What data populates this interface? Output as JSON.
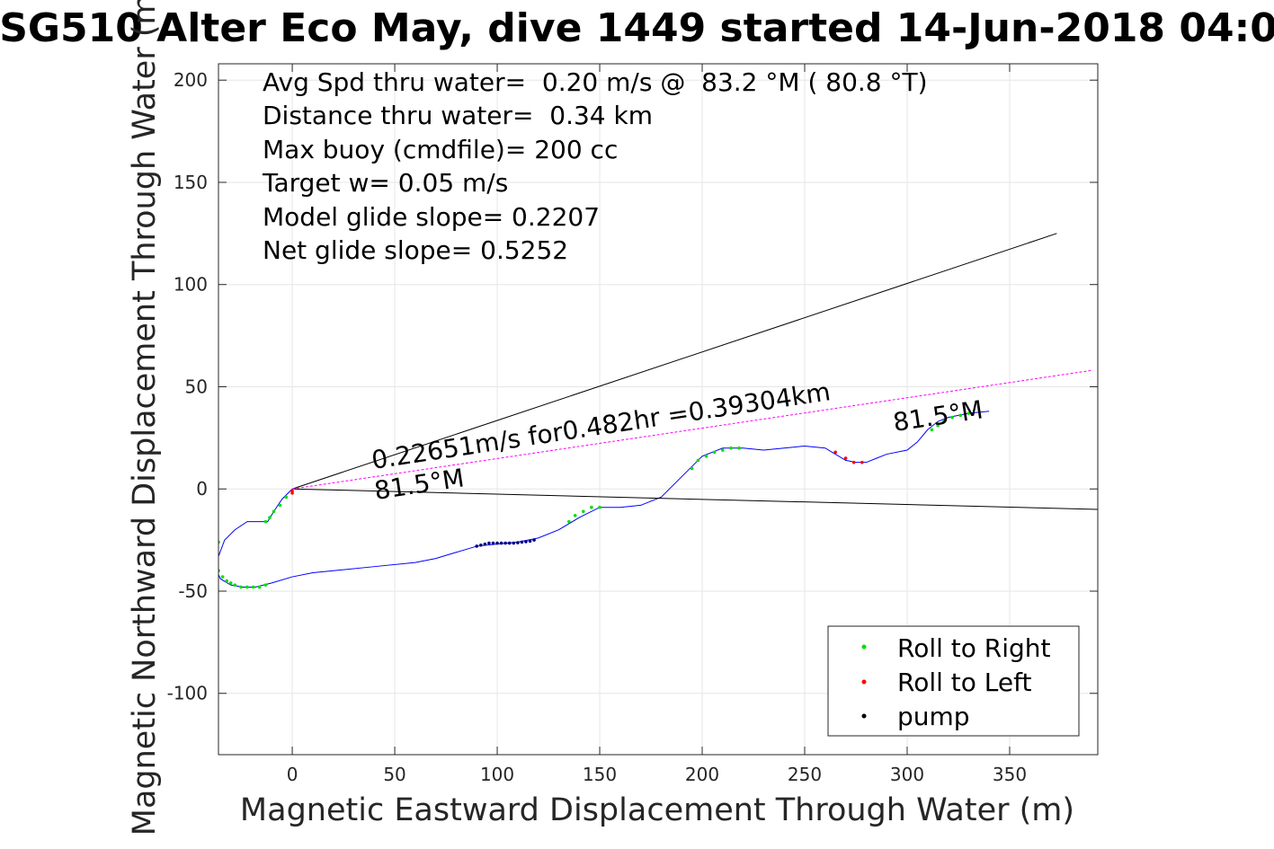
{
  "chart_data": {
    "type": "line",
    "title": "SG510 Alter Eco May, dive 1449 started 14-Jun-2018 04:0",
    "xlabel": "Magnetic Eastward Displacement Through Water (m)",
    "ylabel": "Magnetic Northward Displacement Through Water (m)",
    "xlim": [
      -36,
      393
    ],
    "ylim": [
      -130,
      208
    ],
    "xticks": [
      0,
      50,
      100,
      150,
      200,
      250,
      300,
      350
    ],
    "yticks": [
      -100,
      -50,
      0,
      50,
      100,
      150,
      200
    ],
    "grid": true,
    "legend_position": "bottom-right",
    "legend": [
      {
        "label": "Roll to Right",
        "color": "#00e000"
      },
      {
        "label": "Roll to Left",
        "color": "#ff0000"
      },
      {
        "label": "pump",
        "color": "#000000"
      }
    ],
    "annotations": [
      "Avg Spd thru water=  0.20 m/s @  83.2 °M ( 80.8 °T)",
      "Distance thru water=  0.34 km",
      "Max buoy (cmdfile)= 200 cc",
      "Target w= 0.05 m/s",
      "Model glide slope= 0.2207",
      "Net glide slope= 0.5252"
    ],
    "line_labels": [
      "0.22651m/s for0.482hr =0.39304km",
      "81.5°M",
      "81.5°M"
    ],
    "series": [
      {
        "role": "track",
        "color": "#0000ff",
        "x": [
          0,
          -5,
          -9,
          -12,
          -16,
          -22,
          -28,
          -33,
          -36,
          -37,
          -35,
          -30,
          -24,
          -18,
          -10,
          0,
          10,
          20,
          40,
          60,
          70,
          80,
          90,
          100,
          110,
          120,
          130,
          140,
          150,
          160,
          170,
          180,
          190,
          200,
          210,
          220,
          230,
          240,
          250,
          260,
          265,
          270,
          275,
          280,
          285,
          290,
          300,
          305,
          310,
          315,
          320,
          330,
          340
        ],
        "y": [
          0,
          -5,
          -11,
          -16,
          -16,
          -16,
          -20,
          -25,
          -33,
          -40,
          -44,
          -47,
          -48,
          -48,
          -46,
          -43,
          -41,
          -40,
          -38,
          -36,
          -34,
          -31,
          -28,
          -27,
          -26,
          -24,
          -20,
          -14,
          -9,
          -9,
          -8,
          -4,
          6,
          16,
          20,
          20,
          19,
          20,
          21,
          20,
          17,
          14,
          13,
          13,
          15,
          17,
          19,
          23,
          29,
          33,
          35,
          37,
          38
        ]
      },
      {
        "role": "heading-line",
        "color": "#000000",
        "x": [
          0,
          373
        ],
        "y": [
          0,
          125
        ]
      },
      {
        "role": "heading-line",
        "color": "#000000",
        "x": [
          0,
          393
        ],
        "y": [
          0,
          -10
        ]
      },
      {
        "role": "net-heading-line",
        "color": "#ff00ff",
        "x": [
          0,
          390
        ],
        "y": [
          0,
          58
        ]
      },
      {
        "name": "Roll to Right",
        "color": "#00e000",
        "x": [
          -3,
          -6,
          -9,
          -11,
          -13,
          -36,
          -37,
          -36,
          -34,
          -32,
          -30,
          -28,
          -25,
          -22,
          -19,
          -16,
          -13,
          135,
          138,
          142,
          146,
          150,
          195,
          198,
          202,
          206,
          210,
          214,
          218,
          312,
          315,
          318,
          322,
          326,
          330
        ],
        "y": [
          -4,
          -8,
          -11,
          -14,
          -16,
          -26,
          -34,
          -40,
          -43,
          -45,
          -46,
          -47,
          -48,
          -48,
          -48,
          -48,
          -47,
          -16,
          -13,
          -11,
          -9,
          -9,
          10,
          14,
          16,
          18,
          19,
          20,
          20,
          29,
          31,
          33,
          35,
          36,
          37
        ]
      },
      {
        "name": "Roll to Left",
        "color": "#ff0000",
        "x": [
          0,
          0,
          265,
          270,
          274,
          278
        ],
        "y": [
          -1,
          -2,
          18,
          15,
          13,
          13
        ]
      },
      {
        "name": "pump",
        "color": "#000080",
        "x": [
          90,
          92,
          94,
          96,
          98,
          100,
          102,
          104,
          106,
          108,
          110,
          112,
          114,
          116,
          118
        ],
        "y": [
          -28,
          -27.5,
          -27,
          -26.5,
          -26.5,
          -26.5,
          -26.5,
          -26.5,
          -26.5,
          -26.5,
          -26.3,
          -26,
          -25.8,
          -25.5,
          -25
        ]
      }
    ]
  }
}
